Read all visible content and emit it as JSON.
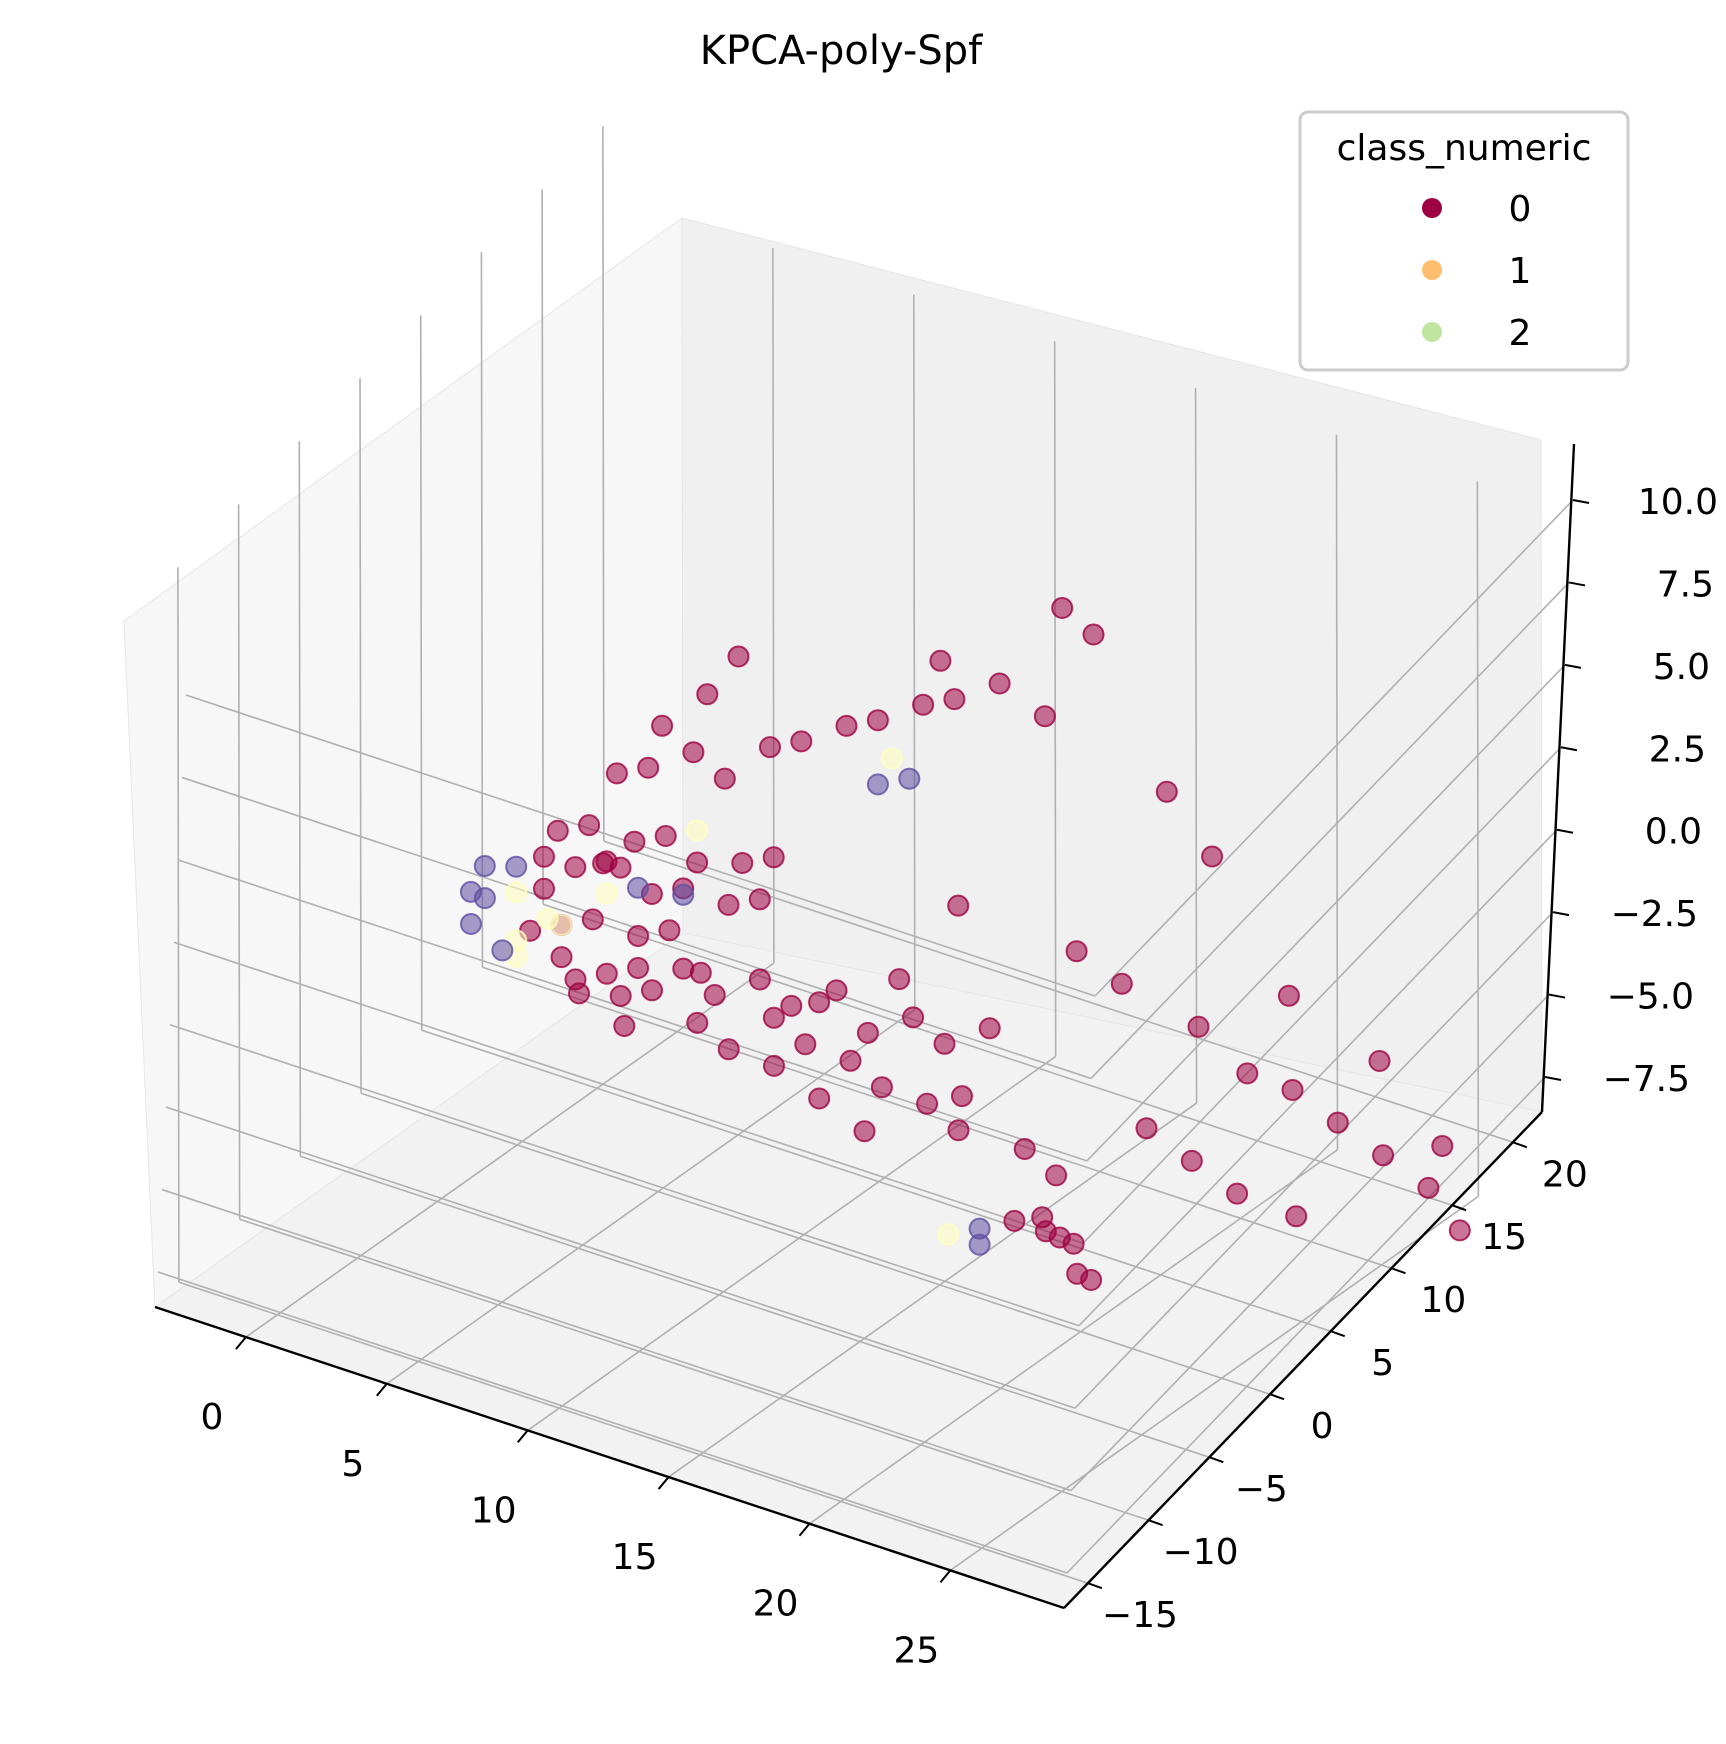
{
  "chart_data": {
    "type": "scatter",
    "projection": "3d",
    "title": "KPCA-poly-Spf",
    "xlabel": "",
    "ylabel": "",
    "zlabel": "",
    "grid": true,
    "x_ticks": [
      "0",
      "5",
      "10",
      "15",
      "20",
      "25"
    ],
    "y_ticks": [
      "−15",
      "−10",
      "−5",
      "0",
      "5",
      "10",
      "15",
      "20"
    ],
    "z_ticks": [
      "−7.5",
      "−5.0",
      "−2.5",
      "0.0",
      "2.5",
      "5.0",
      "7.5",
      "10.0"
    ],
    "legend": {
      "title": "class_numeric",
      "placement": "upper right",
      "entries": [
        {
          "label": "0",
          "color": "#9e0142"
        },
        {
          "label": "1",
          "color": "#fdbf6f"
        },
        {
          "label": "2",
          "color": "#bfe5a0"
        }
      ]
    },
    "colors": {
      "class0": "#9e0142",
      "class1": "#fdbf6f",
      "class2": "#bfe5a0",
      "cluster_blue": "#5e4fa2",
      "cluster_pale": "#ffffbf"
    },
    "series": [
      {
        "name": "0",
        "class": 0,
        "points": [
          [
            2,
            3,
            0.5
          ],
          [
            2,
            4,
            1
          ],
          [
            3,
            3,
            0.5
          ],
          [
            3,
            4,
            1.5
          ],
          [
            2,
            3,
            -0.5
          ],
          [
            3,
            5,
            0
          ],
          [
            4,
            3,
            1
          ],
          [
            4,
            4,
            0.5
          ],
          [
            4,
            5,
            1
          ],
          [
            5,
            4,
            0
          ],
          [
            5,
            5,
            1.5
          ],
          [
            6,
            4,
            0.5
          ],
          [
            6,
            5,
            1
          ],
          [
            7,
            5,
            0
          ],
          [
            7,
            6,
            1
          ],
          [
            8,
            5,
            0.5
          ],
          [
            8,
            6,
            1.5
          ],
          [
            3,
            2,
            -1
          ],
          [
            4,
            2,
            -0.5
          ],
          [
            5,
            3,
            -1
          ],
          [
            6,
            3,
            -0.5
          ],
          [
            2,
            2,
            -1.5
          ],
          [
            3,
            2,
            -2
          ],
          [
            4,
            3,
            -2.5
          ],
          [
            5,
            3,
            -2
          ],
          [
            6,
            4,
            -2
          ],
          [
            7,
            4,
            -2.5
          ],
          [
            8,
            5,
            -2
          ],
          [
            9,
            5,
            -2.5
          ],
          [
            10,
            6,
            -2
          ],
          [
            11,
            6,
            -3
          ],
          [
            12,
            7,
            -2.5
          ],
          [
            13,
            7,
            -3
          ],
          [
            14,
            8,
            -2.5
          ],
          [
            3,
            6,
            2.5
          ],
          [
            4,
            6,
            3
          ],
          [
            5,
            7,
            3.5
          ],
          [
            6,
            7,
            3
          ],
          [
            7,
            8,
            4
          ],
          [
            8,
            8,
            4.5
          ],
          [
            9,
            9,
            5
          ],
          [
            10,
            9,
            5.5
          ],
          [
            11,
            10,
            6
          ],
          [
            12,
            10,
            6.5
          ],
          [
            13,
            11,
            7
          ],
          [
            4,
            7,
            4
          ],
          [
            5,
            8,
            5
          ],
          [
            6,
            8,
            6.5
          ],
          [
            9,
            6,
            -4
          ],
          [
            10,
            7,
            -4.5
          ],
          [
            11,
            7,
            -5
          ],
          [
            12,
            8,
            -5.5
          ],
          [
            13,
            8,
            -6
          ],
          [
            8,
            6,
            -5
          ],
          [
            9,
            7,
            -6
          ],
          [
            10,
            8,
            -7
          ],
          [
            17,
            3,
            -6
          ],
          [
            18,
            4,
            -6.5
          ],
          [
            18,
            3,
            -6
          ],
          [
            19,
            3,
            -7
          ],
          [
            19,
            4,
            -7.5
          ],
          [
            18,
            5,
            -7
          ],
          [
            17,
            5,
            -6.5
          ],
          [
            16,
            6,
            -5
          ],
          [
            17,
            6,
            -5.5
          ],
          [
            15,
            12,
            -1
          ],
          [
            16,
            13,
            -2
          ],
          [
            18,
            14,
            -3
          ],
          [
            20,
            13,
            -3.5
          ],
          [
            21,
            14,
            -4
          ],
          [
            22,
            15,
            -5
          ],
          [
            23,
            16,
            -6
          ],
          [
            24,
            17,
            -7
          ],
          [
            25,
            17,
            -8
          ],
          [
            24,
            18,
            -6
          ],
          [
            22,
            12,
            -7
          ],
          [
            21,
            10,
            -6
          ],
          [
            20,
            9,
            -5
          ],
          [
            19,
            8,
            -4
          ],
          [
            20,
            16,
            -2
          ],
          [
            22,
            18,
            -4
          ],
          [
            18,
            15,
            2
          ],
          [
            17,
            14,
            4
          ],
          [
            16,
            11,
            9.5
          ],
          [
            15,
            11,
            10
          ],
          [
            12,
            9,
            8
          ],
          [
            14,
            12,
            6
          ],
          [
            13,
            8,
            1
          ],
          [
            12,
            6,
            -1
          ],
          [
            7,
            3,
            -1.5
          ],
          [
            3,
            3,
            -3
          ],
          [
            4,
            4,
            -3.5
          ],
          [
            5,
            4,
            -3
          ],
          [
            6,
            5,
            -4
          ],
          [
            7,
            5,
            -4.5
          ],
          [
            8,
            6,
            -3.5
          ],
          [
            9,
            7,
            -3
          ],
          [
            4,
            1,
            -2.5
          ],
          [
            5,
            2,
            -3.5
          ],
          [
            14,
            6,
            -4
          ]
        ]
      },
      {
        "name": "1",
        "class": 1,
        "points": [
          [
            2,
            1,
            0
          ],
          [
            3,
            1,
            -0.5
          ],
          [
            2,
            1,
            -1.5
          ],
          [
            3,
            2,
            -1
          ],
          [
            2,
            1,
            -2
          ],
          [
            4,
            3,
            0
          ],
          [
            10,
            10,
            4
          ],
          [
            14,
            5,
            -8
          ],
          [
            6,
            5,
            2
          ]
        ]
      },
      {
        "name": "2",
        "class": 2,
        "points": [
          [
            1,
            1,
            0.5
          ],
          [
            1,
            0,
            0
          ],
          [
            1,
            1,
            -0.5
          ],
          [
            2,
            1,
            0.8
          ],
          [
            1,
            0,
            -1
          ],
          [
            2,
            0,
            -1.5
          ],
          [
            5,
            3,
            0.5
          ],
          [
            6,
            4,
            0.3
          ],
          [
            10,
            9,
            3.5
          ],
          [
            11,
            9,
            4
          ],
          [
            15,
            5,
            -8
          ],
          [
            15,
            5,
            -7.5
          ]
        ]
      }
    ]
  }
}
